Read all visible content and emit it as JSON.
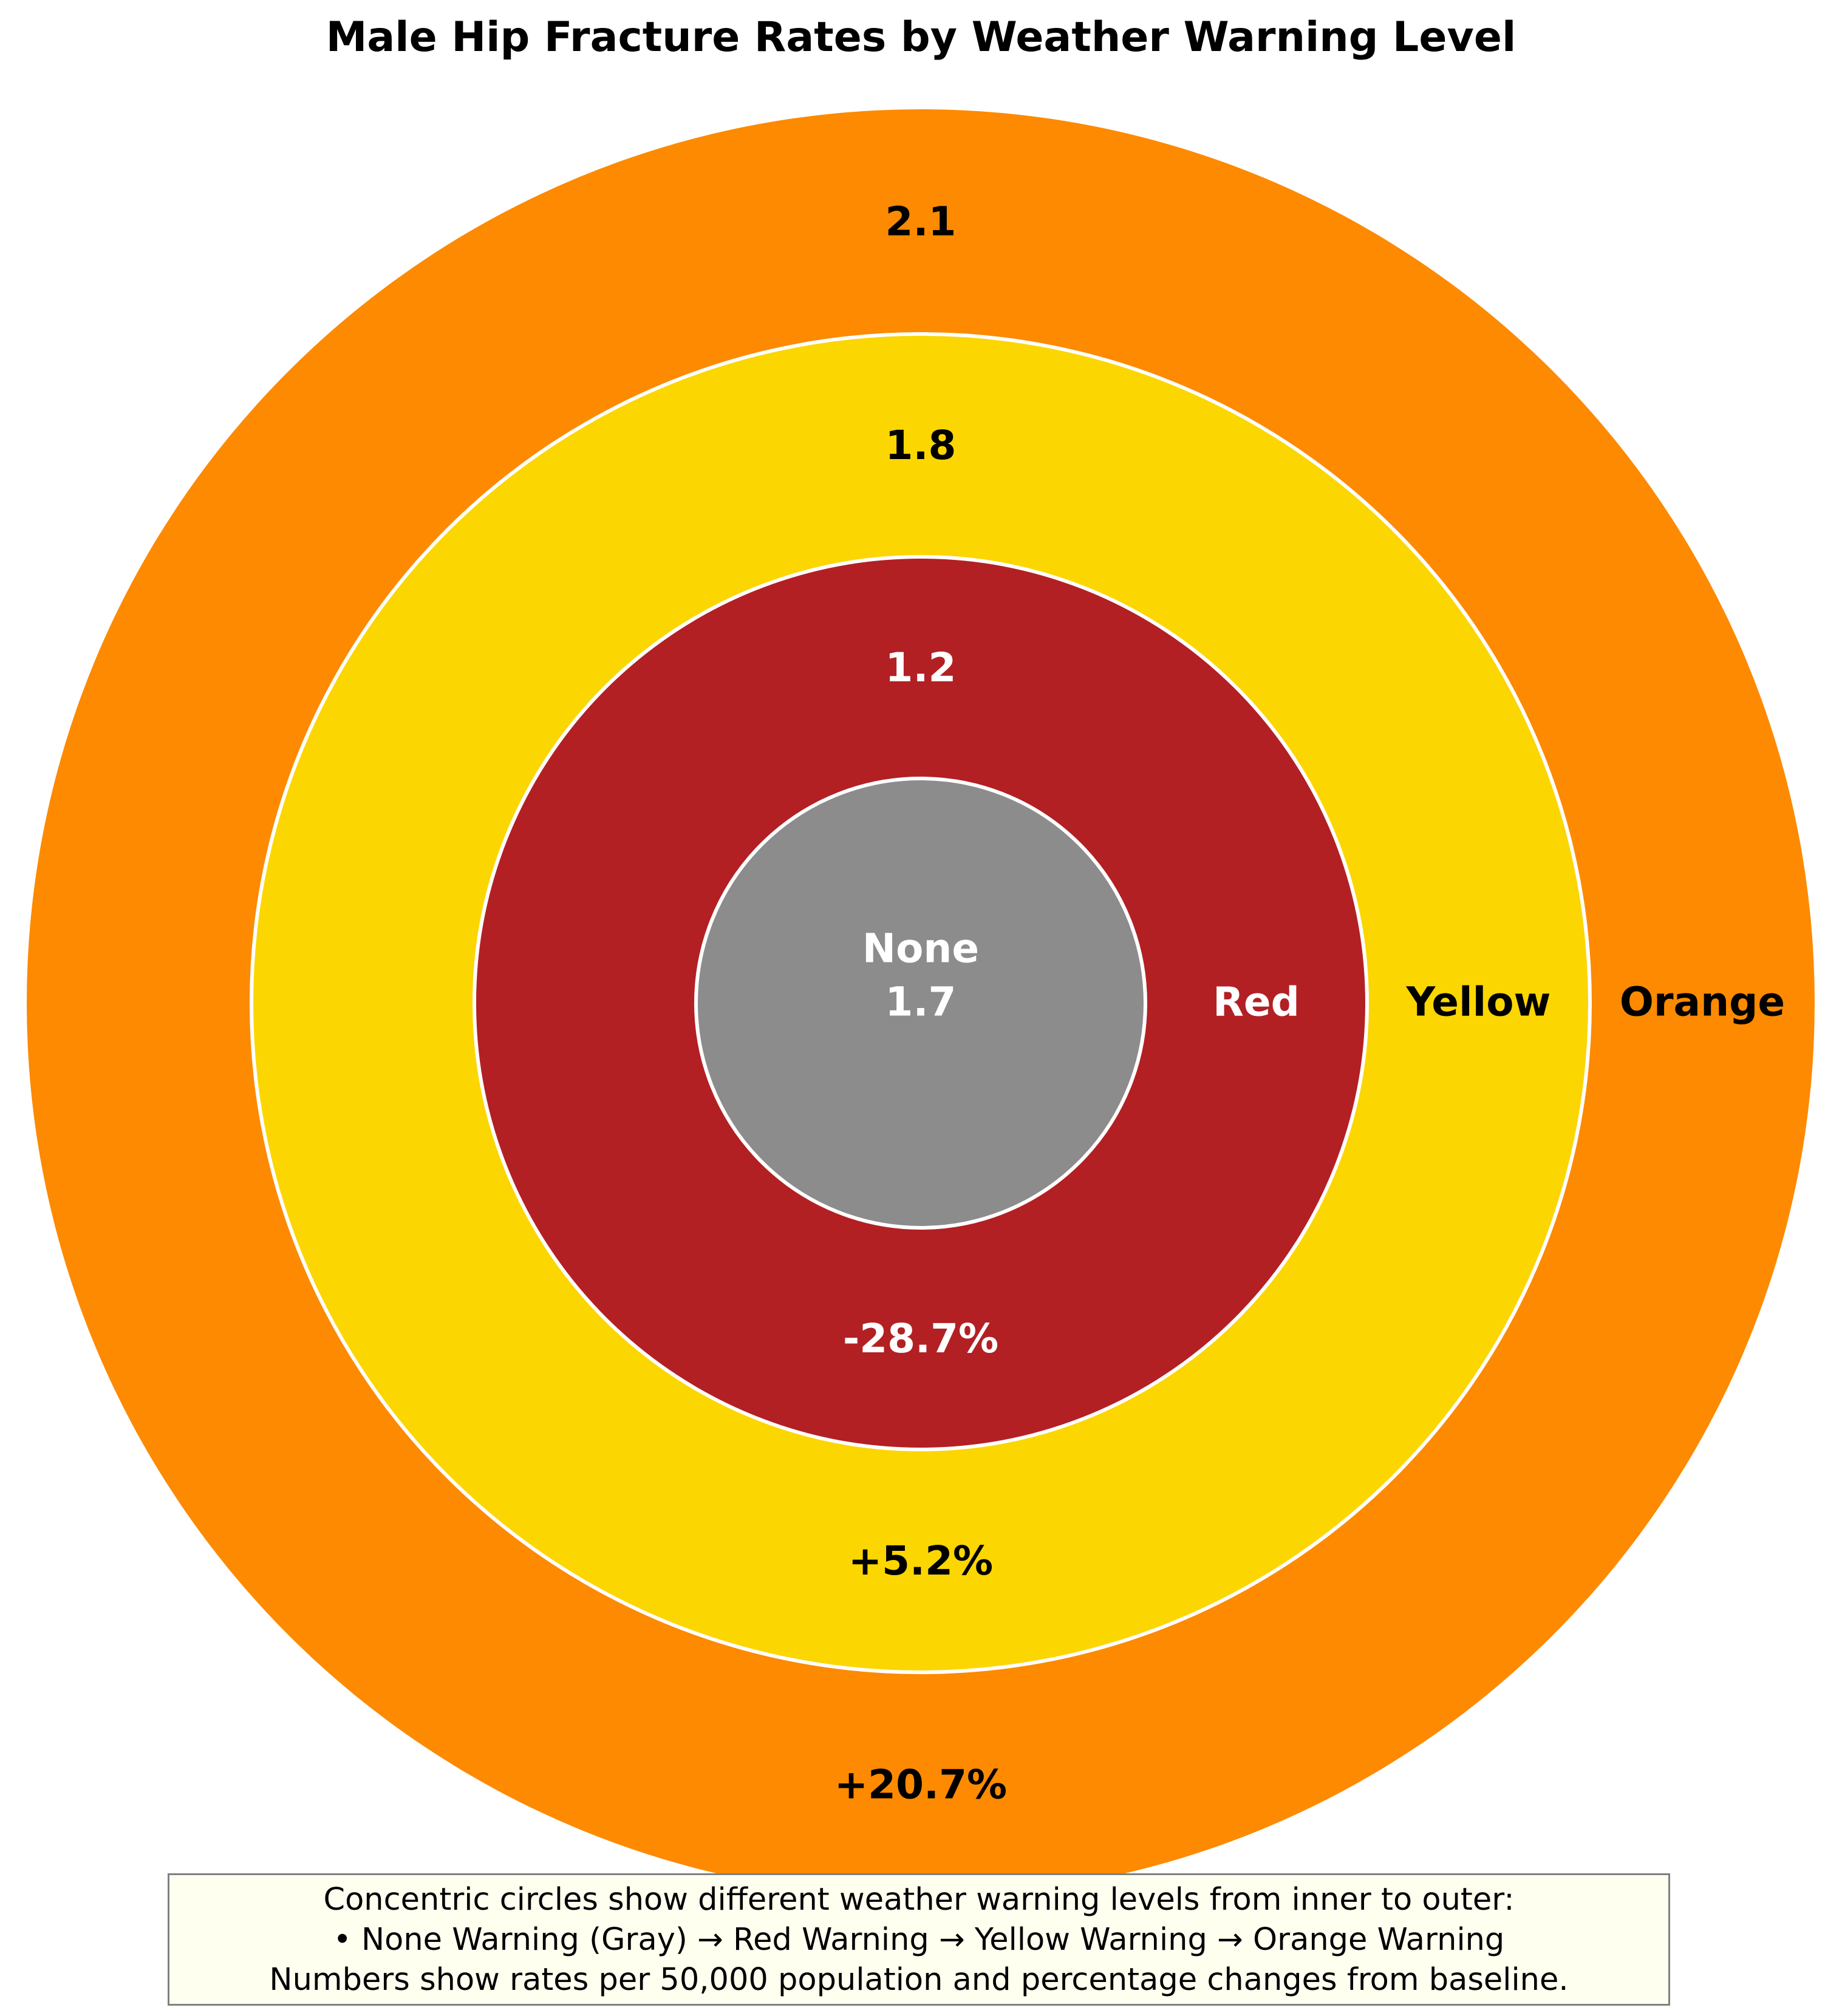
{
  "chart_data": {
    "type": "concentric-circles",
    "title": "Male Hip Fracture Rates by Weather Warning Level",
    "unit": "rates per 50,000 population",
    "baseline": "None",
    "series": [
      {
        "name": "None",
        "rate": 1.7,
        "rate_label": "1.7",
        "change_pct": 0,
        "change_label": "",
        "color": "#8c8c8c",
        "text_color": "#ffffff"
      },
      {
        "name": "Red",
        "rate": 1.2,
        "rate_label": "1.2",
        "change_pct": -28.7,
        "change_label": "-28.7%",
        "color": "#b22024",
        "text_color": "#ffffff"
      },
      {
        "name": "Yellow",
        "rate": 1.8,
        "rate_label": "1.8",
        "change_pct": 5.2,
        "change_label": "+5.2%",
        "color": "#fcd600",
        "text_color": "#000000"
      },
      {
        "name": "Orange",
        "rate": 2.1,
        "rate_label": "2.1",
        "change_pct": 20.7,
        "change_label": "+20.7%",
        "color": "#fd8a00",
        "text_color": "#000000"
      }
    ],
    "legend_placement": "bottom",
    "grid": false
  },
  "note": {
    "lines": [
      "Concentric circles show different weather warning levels from inner to outer:",
      "• None Warning (Gray) → Red Warning → Yellow Warning → Orange Warning",
      "Numbers show rates per 50,000 population and percentage changes from baseline."
    ]
  },
  "colors": {
    "ring_border": "#ffffff",
    "note_background": "#fffff0",
    "note_border": "#808080"
  }
}
